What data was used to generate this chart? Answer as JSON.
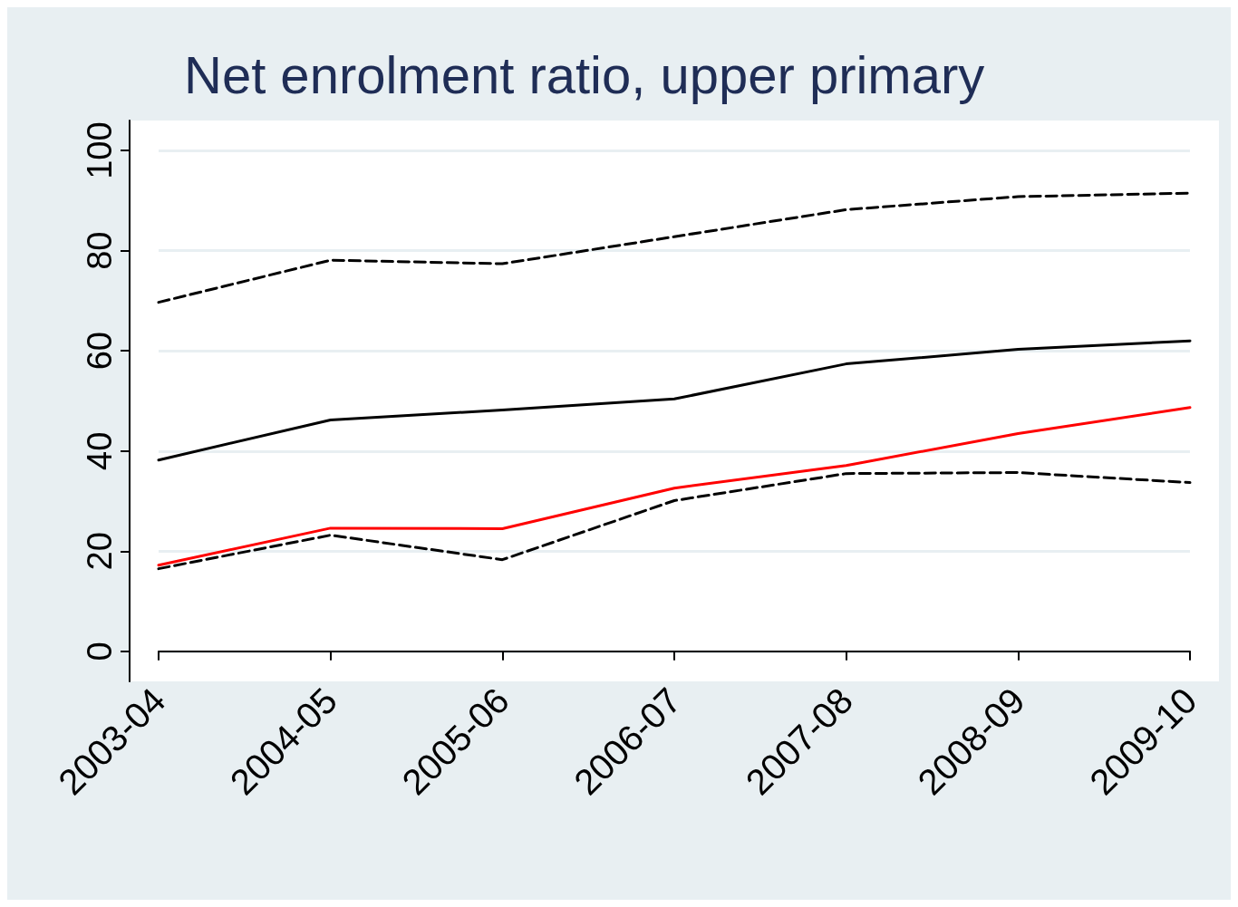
{
  "chart_data": {
    "type": "line",
    "title": "Net enrolment ratio, upper primary",
    "categories": [
      "2003-04",
      "2004-05",
      "2005-06",
      "2006-07",
      "2007-08",
      "2008-09",
      "2009-10"
    ],
    "series": [
      {
        "color": "#000000",
        "line_style": "dashed",
        "values": [
          69.7,
          78.1,
          77.4,
          82.8,
          88.2,
          90.8,
          91.5
        ]
      },
      {
        "color": "#000000",
        "line_style": "solid",
        "values": [
          38.2,
          46.2,
          48.2,
          50.4,
          57.4,
          60.3,
          62.0
        ]
      },
      {
        "color": "#ff0000",
        "line_style": "solid",
        "values": [
          17.2,
          24.6,
          24.5,
          32.6,
          37.1,
          43.5,
          48.7
        ]
      },
      {
        "color": "#000000",
        "line_style": "dashed",
        "values": [
          16.5,
          23.2,
          18.3,
          30.1,
          35.5,
          35.7,
          33.7
        ]
      }
    ],
    "ylim": [
      -6,
      106
    ],
    "yticks": [
      0,
      20,
      40,
      60,
      80,
      100
    ],
    "grid": "y",
    "marker": "none"
  }
}
